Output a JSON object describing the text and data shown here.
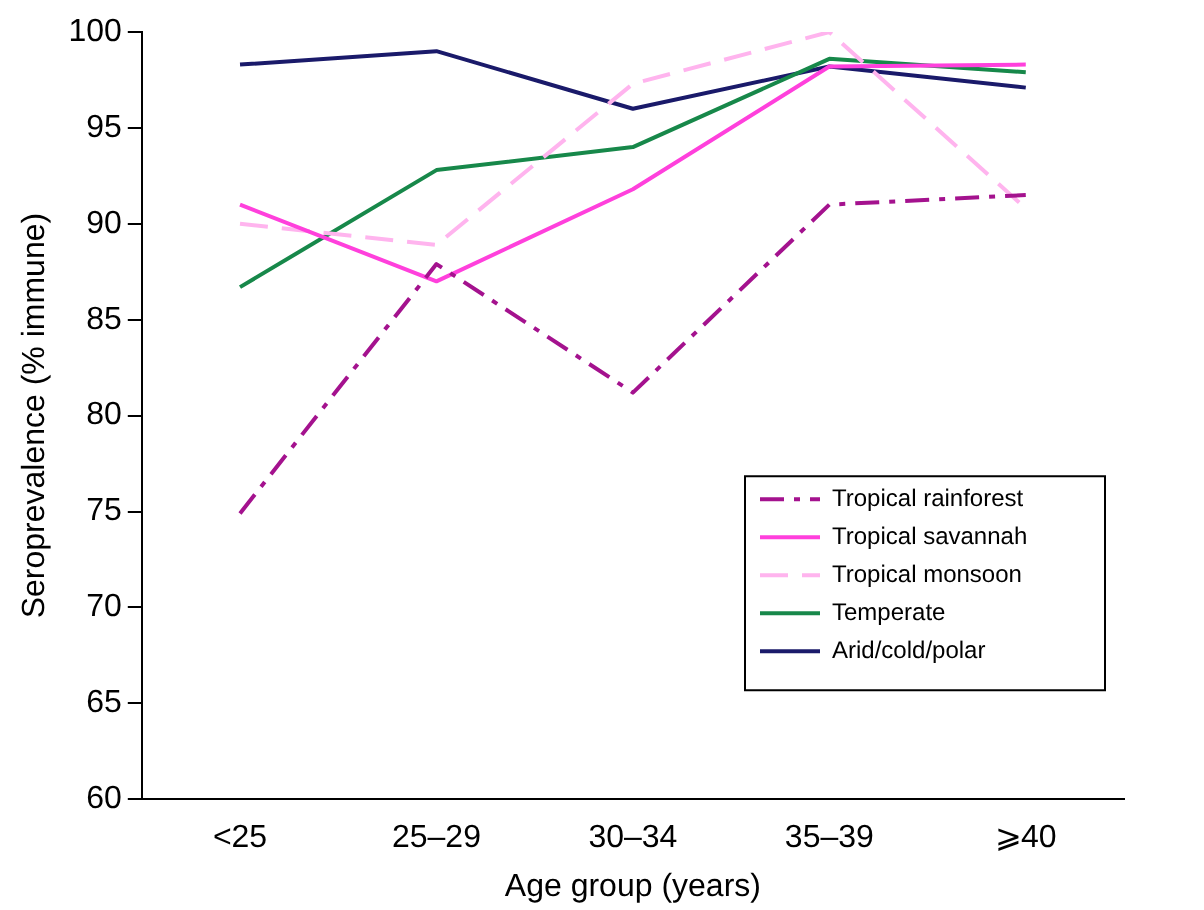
{
  "chart_data": {
    "type": "line",
    "xlabel": "Age group (years)",
    "ylabel": "Seroprevalence (% immune)",
    "categories": [
      "<25",
      "25–29",
      "30–34",
      "35–39",
      "⩾40"
    ],
    "ylim": [
      60,
      100
    ],
    "yticks": [
      60,
      65,
      70,
      75,
      80,
      85,
      90,
      95,
      100
    ],
    "grid": false,
    "legend": "bottom right",
    "marker": "none",
    "series": [
      {
        "name": "Tropical rainforest",
        "color": "#a4128e",
        "line_style": "dashdot",
        "values": [
          74.9,
          87.9,
          81.2,
          91,
          91.5
        ]
      },
      {
        "name": "Tropical savannah",
        "color": "#ff40dc",
        "line_style": "solid",
        "values": [
          91,
          87,
          91.8,
          98.2,
          98.3
        ]
      },
      {
        "name": "Tropical monsoon",
        "color": "#ffb4ee",
        "line_style": "dashed",
        "values": [
          90,
          88.9,
          97.3,
          100,
          90.8
        ]
      },
      {
        "name": "Temperate",
        "color": "#17884a",
        "line_style": "solid",
        "values": [
          86.7,
          92.8,
          94,
          98.6,
          97.9
        ]
      },
      {
        "name": "Arid/cold/polar",
        "color": "#1a1a6a",
        "line_style": "solid",
        "values": [
          98.3,
          99,
          96,
          98.2,
          97.1
        ]
      }
    ]
  }
}
